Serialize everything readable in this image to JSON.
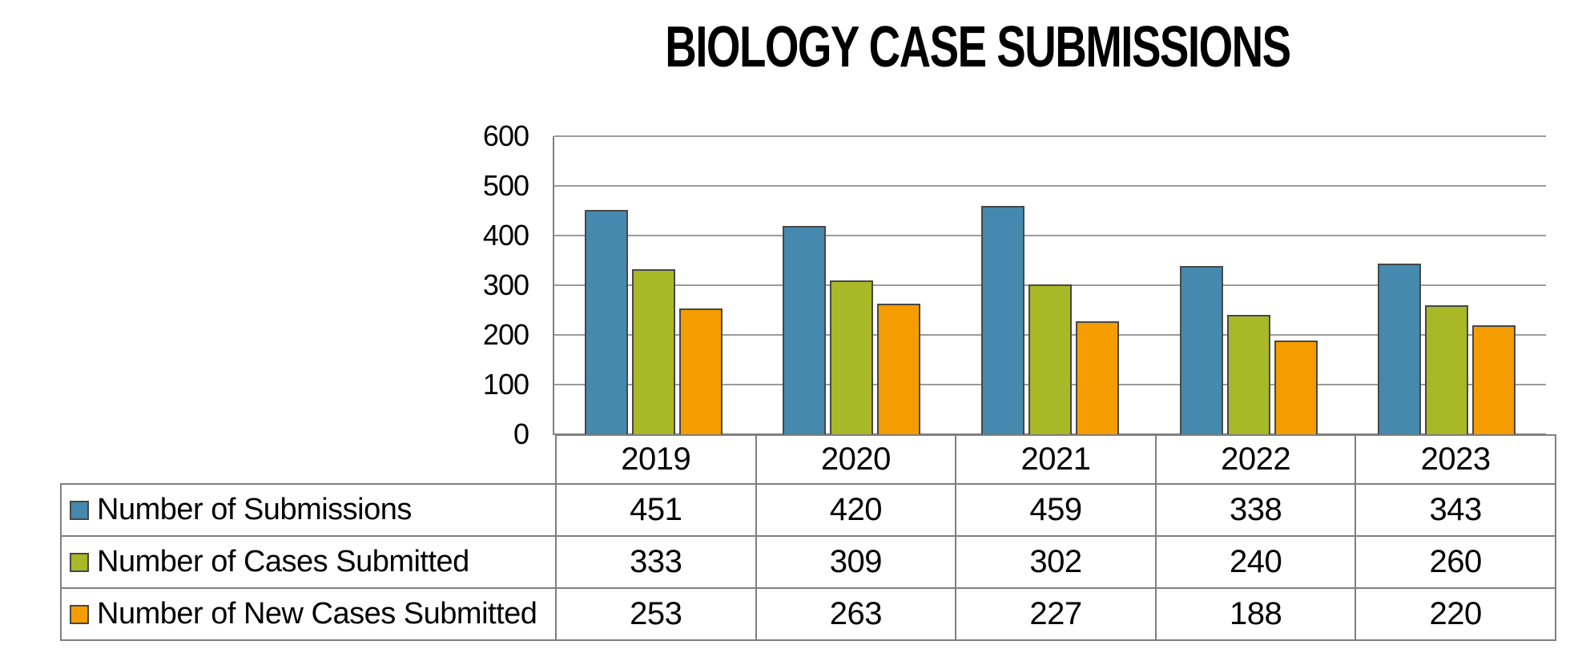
{
  "title": "BIOLOGY CASE SUBMISSIONS",
  "colors": {
    "series_blue": "#4589AE",
    "series_green": "#A8B827",
    "series_orange": "#F59C00",
    "bar_outline": "#474747",
    "gridline": "#9B9B9B",
    "axis_and_table_border": "#7F7F7F",
    "text": "#000000",
    "background": "#FFFFFF"
  },
  "chart_data": {
    "type": "bar",
    "title": "BIOLOGY CASE SUBMISSIONS",
    "categories": [
      "2019",
      "2020",
      "2021",
      "2022",
      "2023"
    ],
    "series": [
      {
        "name": "Number of Submissions",
        "color": "#4589AE",
        "values": [
          451,
          420,
          459,
          338,
          343
        ]
      },
      {
        "name": "Number of Cases Submitted",
        "color": "#A8B827",
        "values": [
          333,
          309,
          302,
          240,
          260
        ]
      },
      {
        "name": "Number of New Cases Submitted",
        "color": "#F59C00",
        "values": [
          253,
          263,
          227,
          188,
          220
        ]
      }
    ],
    "xlabel": "",
    "ylabel": "",
    "ylim": [
      0,
      600
    ],
    "yticks": [
      0,
      100,
      200,
      300,
      400,
      500,
      600
    ],
    "grid": true,
    "legend_position": "table-left-column"
  }
}
